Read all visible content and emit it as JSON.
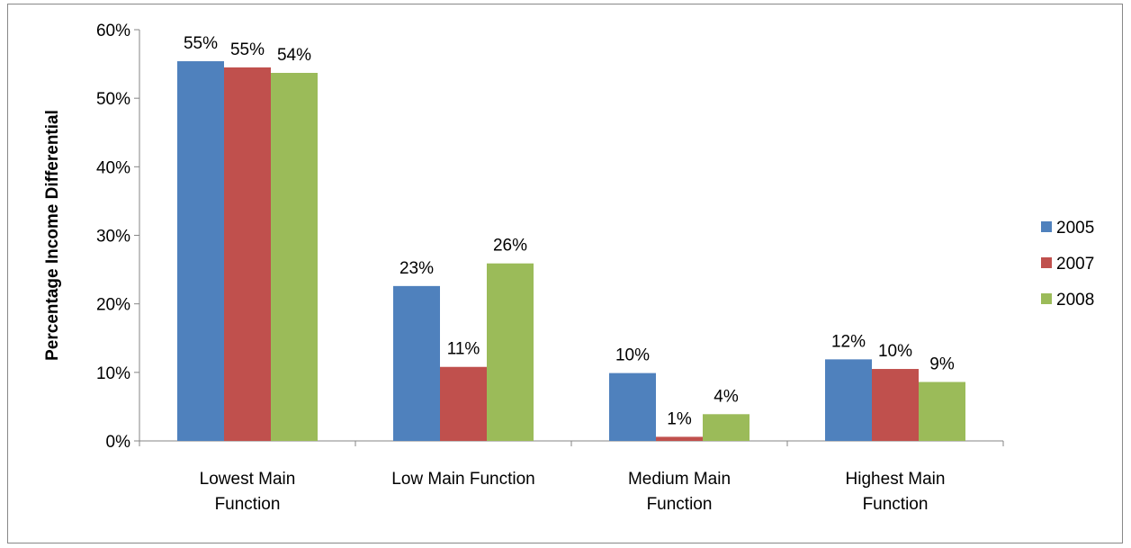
{
  "chart_data": {
    "type": "bar",
    "title": "",
    "xlabel": "",
    "ylabel": "Percentage  Income Differential",
    "ylim": [
      0,
      60
    ],
    "yticks": [
      "0%",
      "10%",
      "20%",
      "30%",
      "40%",
      "50%",
      "60%"
    ],
    "grid": false,
    "legend_position": "right",
    "categories": [
      [
        "Lowest Main",
        "Function"
      ],
      [
        "Low Main Function"
      ],
      [
        "Medium Main",
        "Function"
      ],
      [
        "Highest Main",
        "Function"
      ]
    ],
    "series": [
      {
        "name": "2005",
        "color": "#4F81BD",
        "values": [
          55.4,
          22.6,
          9.9,
          11.9
        ],
        "labels": [
          "55%",
          "23%",
          "10%",
          "12%"
        ]
      },
      {
        "name": "2007",
        "color": "#C0504D",
        "values": [
          54.5,
          10.8,
          0.6,
          10.5
        ],
        "labels": [
          "55%",
          "11%",
          "1%",
          "10%"
        ]
      },
      {
        "name": "2008",
        "color": "#9BBB59",
        "values": [
          53.7,
          25.9,
          3.9,
          8.6
        ],
        "labels": [
          "54%",
          "26%",
          "4%",
          "9%"
        ]
      }
    ]
  }
}
